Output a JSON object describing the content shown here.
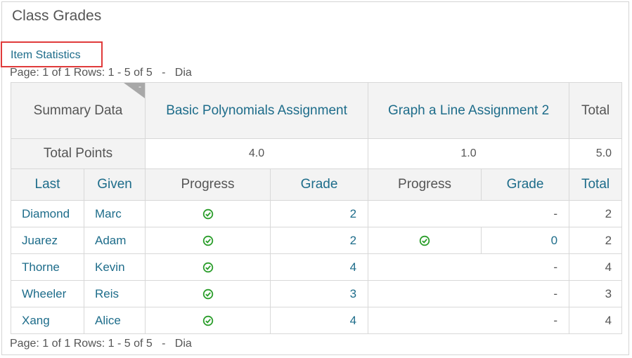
{
  "page": {
    "title": "Class Grades",
    "item_statistics_link": "Item Statistics",
    "pager_top": "Page: 1 of 1 Rows: 1 - 5 of 5",
    "pager_bottom": "Page: 1 of 1 Rows: 1 - 5 of 5",
    "pager_separator": "-",
    "pager_extra": "Dia"
  },
  "table": {
    "summary_label": "Summary Data",
    "corner_mark": "-",
    "assignments": [
      {
        "name": "Basic Polynomials Assignment",
        "total_points": "4.0"
      },
      {
        "name": "Graph a Line Assignment 2",
        "total_points": "1.0"
      }
    ],
    "total_header": "Total",
    "total_points_label": "Total Points",
    "total_points_sum": "5.0",
    "columns": {
      "last": "Last",
      "given": "Given",
      "progress": "Progress",
      "grade": "Grade",
      "total": "Total"
    },
    "rows": [
      {
        "last": "Diamond",
        "given": "Marc",
        "a1_grade": "2",
        "a2_grade": "-",
        "total": "2"
      },
      {
        "last": "Juarez",
        "given": "Adam",
        "a1_grade": "2",
        "a2_grade": "0",
        "total": "2"
      },
      {
        "last": "Thorne",
        "given": "Kevin",
        "a1_grade": "4",
        "a2_grade": "-",
        "total": "4"
      },
      {
        "last": "Wheeler",
        "given": "Reis",
        "a1_grade": "3",
        "a2_grade": "-",
        "total": "3"
      },
      {
        "last": "Xang",
        "given": "Alice",
        "a1_grade": "4",
        "a2_grade": "-",
        "total": "4"
      }
    ],
    "check_icon": "check-circle-icon",
    "check_color": "#2a9d2a"
  }
}
